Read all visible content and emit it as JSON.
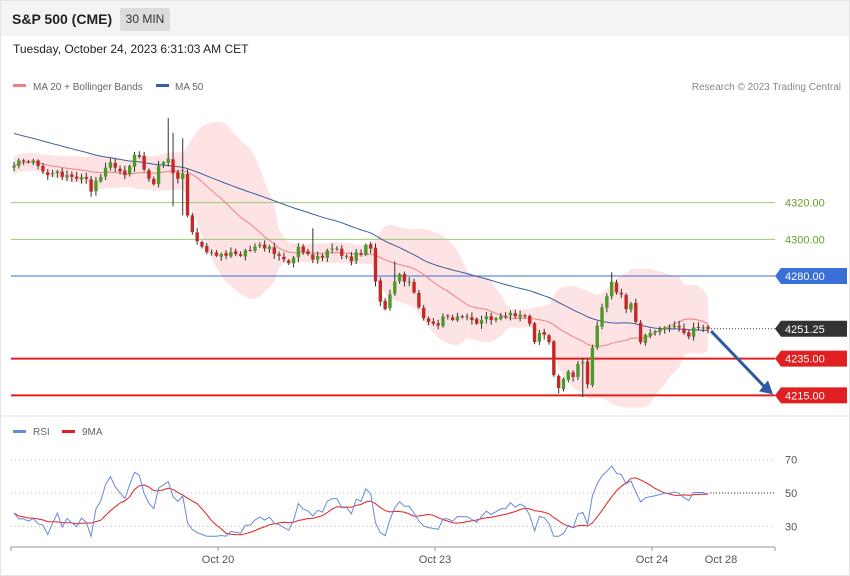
{
  "header": {
    "title": "S&P 500 (CME)",
    "timeframe": "30 MIN",
    "datetime": "Tuesday, October 24, 2023 6:31:03 AM CET"
  },
  "legend": {
    "ma20": "MA 20 + Bollinger Bands",
    "ma50": "MA 50",
    "credit": "Research © 2023 Trading Central"
  },
  "rsi_legend": {
    "rsi": "RSI",
    "ma9": "9MA"
  },
  "colors": {
    "up": "#4c9a2a",
    "down": "#c62828",
    "ma20": "#f08080",
    "ma50": "#3a5e9e",
    "band": "#fde0e0",
    "resistance": "#3a6fd8",
    "support": "#e02020",
    "green_level": "#9cc97a",
    "rsi": "#6688dd",
    "rsi_ma": "#e02020",
    "arrow": "#2d5aa0"
  },
  "chart_data": [
    {
      "type": "candlestick",
      "ylim": [
        4207,
        4377
      ],
      "last_price": {
        "value": 4251.25,
        "label": "4251.25"
      },
      "levels": [
        {
          "value": 4320,
          "label": "4320.00",
          "kind": "target"
        },
        {
          "value": 4300,
          "label": "4300.00",
          "kind": "target"
        },
        {
          "value": 4280,
          "label": "4280.00",
          "kind": "resistance"
        },
        {
          "value": 4235,
          "label": "4235.00",
          "kind": "support"
        },
        {
          "value": 4215,
          "label": "4215.00",
          "kind": "support"
        }
      ],
      "forecast_arrow": {
        "from": 4250,
        "to": 4215
      },
      "close": [
        4340,
        4343,
        4343,
        4342,
        4343,
        4340,
        4337,
        4335,
        4336,
        4337,
        4334,
        4335,
        4334,
        4333,
        4334,
        4333,
        4326,
        4332,
        4334,
        4339,
        4342,
        4339,
        4337,
        4335,
        4340,
        4346,
        4345,
        4338,
        4333,
        4330,
        4340,
        4342,
        4344,
        4336,
        4333,
        4336,
        4313,
        4304,
        4299,
        4296,
        4293,
        4293,
        4291,
        4292,
        4291,
        4293,
        4292,
        4291,
        4294,
        4294,
        4296,
        4297,
        4295,
        4296,
        4292,
        4291,
        4289,
        4287,
        4290,
        4296,
        4293,
        4292,
        4289,
        4291,
        4290,
        4294,
        4295,
        4295,
        4291,
        4291,
        4288,
        4293,
        4292,
        4297,
        4295,
        4277,
        4266,
        4262,
        4270,
        4277,
        4281,
        4277,
        4277,
        4271,
        4263,
        4257,
        4255,
        4254,
        4253,
        4258,
        4258,
        4256,
        4258,
        4258,
        4258,
        4256,
        4254,
        4256,
        4258,
        4256,
        4257,
        4258,
        4258,
        4260,
        4258,
        4259,
        4258,
        4254,
        4244,
        4249,
        4248,
        4244,
        4226,
        4219,
        4224,
        4228,
        4225,
        4232,
        4233,
        4221,
        4241,
        4253,
        4263,
        4269,
        4277,
        4271,
        4270,
        4262,
        4265,
        4255,
        4244,
        4248,
        4249,
        4250,
        4251,
        4252,
        4252,
        4253,
        4252,
        4249,
        4247,
        4252,
        4252,
        4252,
        4251
      ],
      "rsi": {
        "ylim": [
          20,
          80
        ],
        "ticks": [
          70,
          50,
          30
        ],
        "last_rsi": 50,
        "last_ma9": 50
      }
    }
  ],
  "axis": {
    "x_labels": [
      {
        "label": "Oct 20"
      },
      {
        "label": "Oct 23"
      },
      {
        "label": "Oct 24"
      },
      {
        "label": "Oct 28"
      }
    ],
    "rsi_ticks": [
      "70",
      "50",
      "30"
    ]
  }
}
